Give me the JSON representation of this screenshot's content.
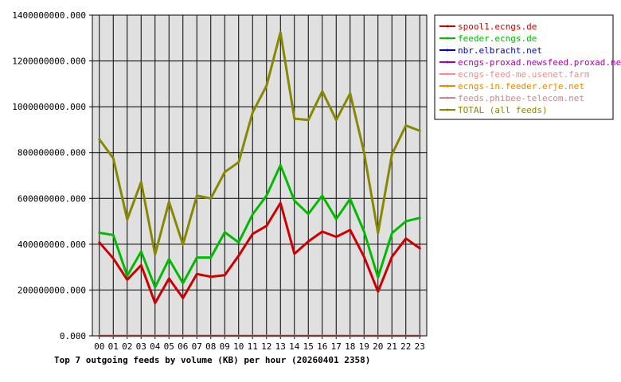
{
  "chart_data": {
    "type": "line",
    "title": "Top 7 outgoing feeds by volume (KB) per hour (20260401 2358)",
    "xlabel": "",
    "ylabel": "",
    "categories": [
      "00",
      "01",
      "02",
      "03",
      "04",
      "05",
      "06",
      "07",
      "08",
      "09",
      "10",
      "11",
      "12",
      "13",
      "14",
      "15",
      "16",
      "17",
      "18",
      "19",
      "20",
      "21",
      "22",
      "23"
    ],
    "yticks": [
      "0.000",
      "200000000.000",
      "400000000.000",
      "600000000.000",
      "800000000.000",
      "1000000000.000",
      "1200000000.000",
      "1400000000.000"
    ],
    "ylim": [
      0,
      1400000000
    ],
    "grid": true,
    "legend_position": "right",
    "series": [
      {
        "name": "spool1.ecngs.de",
        "color": "#cc0000",
        "values": [
          408000000,
          338000000,
          245000000,
          308000000,
          143000000,
          250000000,
          165000000,
          270000000,
          258000000,
          265000000,
          350000000,
          445000000,
          480000000,
          580000000,
          358000000,
          412000000,
          455000000,
          432000000,
          462000000,
          345000000,
          193000000,
          345000000,
          425000000,
          382000000
        ]
      },
      {
        "name": "feeder.ecngs.de",
        "color": "#00bb00",
        "values": [
          450000000,
          440000000,
          262000000,
          368000000,
          212000000,
          335000000,
          230000000,
          342000000,
          342000000,
          452000000,
          408000000,
          530000000,
          612000000,
          745000000,
          590000000,
          532000000,
          612000000,
          510000000,
          598000000,
          455000000,
          255000000,
          448000000,
          500000000,
          515000000
        ]
      },
      {
        "name": "nbr.elbracht.net",
        "color": "#0000cc",
        "values": [
          0,
          0,
          0,
          0,
          0,
          0,
          0,
          0,
          0,
          0,
          0,
          0,
          0,
          0,
          0,
          0,
          0,
          0,
          0,
          0,
          0,
          0,
          0,
          0
        ]
      },
      {
        "name": "ecngs-proxad.newsfeed.proxad.net",
        "color": "#aa00aa",
        "values": [
          0,
          0,
          0,
          0,
          0,
          0,
          0,
          0,
          0,
          0,
          0,
          0,
          0,
          0,
          0,
          0,
          0,
          0,
          0,
          0,
          0,
          0,
          0,
          0
        ]
      },
      {
        "name": "ecngs-feed-me.usenet.farm",
        "color": "#ff8888",
        "values": [
          0,
          0,
          0,
          0,
          0,
          0,
          0,
          0,
          0,
          0,
          0,
          0,
          0,
          0,
          0,
          0,
          0,
          0,
          0,
          0,
          0,
          0,
          0,
          0
        ]
      },
      {
        "name": "ecngs-in.feeder.erje.net",
        "color": "#ee8800",
        "values": [
          0,
          0,
          0,
          0,
          0,
          0,
          0,
          0,
          0,
          0,
          0,
          0,
          0,
          0,
          0,
          0,
          0,
          0,
          0,
          0,
          0,
          0,
          0,
          0
        ]
      },
      {
        "name": "feeds.phibee-telecom.net",
        "color": "#cc8888",
        "values": [
          0,
          0,
          0,
          0,
          0,
          0,
          0,
          0,
          0,
          0,
          0,
          0,
          0,
          0,
          0,
          0,
          0,
          0,
          0,
          0,
          0,
          0,
          0,
          0
        ]
      },
      {
        "name": "TOTAL (all feeds)",
        "color": "#888800",
        "values": [
          858000000,
          775000000,
          508000000,
          672000000,
          355000000,
          585000000,
          398000000,
          612000000,
          600000000,
          715000000,
          758000000,
          975000000,
          1092000000,
          1325000000,
          948000000,
          942000000,
          1068000000,
          942000000,
          1058000000,
          800000000,
          448000000,
          792000000,
          918000000,
          895000000
        ]
      }
    ]
  }
}
